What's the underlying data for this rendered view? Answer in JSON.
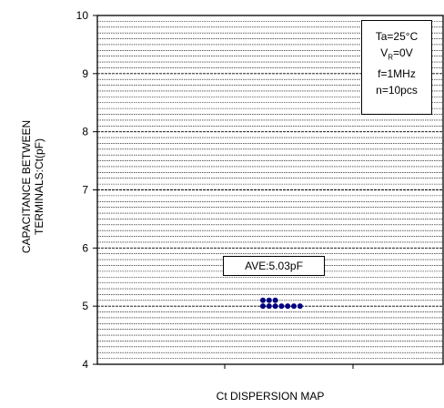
{
  "chart_data": {
    "type": "scatter",
    "title": "",
    "xlabel": "Ct DISPERSION MAP",
    "ylabel_line1": "CAPACITANCE BETWEEN",
    "ylabel_line2": "TERMINALS:Ct(pF)",
    "ylim": [
      4,
      10
    ],
    "yticks": [
      "4",
      "5",
      "6",
      "7",
      "8",
      "9",
      "10"
    ],
    "grid": true,
    "legend": {
      "line1": "Ta=25°C",
      "line2_main": "V",
      "line2_sub": "R",
      "line2_rest": "=0V",
      "line3": "f=1MHz",
      "line4": "n=10pcs"
    },
    "annotation": "AVE:5.03pF",
    "marker_color": "#000080",
    "points": [
      {
        "col": 0,
        "y": 5.1
      },
      {
        "col": 0,
        "y": 5.0
      },
      {
        "col": 1,
        "y": 5.1
      },
      {
        "col": 1,
        "y": 5.0
      },
      {
        "col": 2,
        "y": 5.1
      },
      {
        "col": 2,
        "y": 5.0
      },
      {
        "col": 3,
        "y": 5.0
      },
      {
        "col": 4,
        "y": 5.0
      },
      {
        "col": 5,
        "y": 5.0
      },
      {
        "col": 6,
        "y": 5.0
      }
    ]
  }
}
